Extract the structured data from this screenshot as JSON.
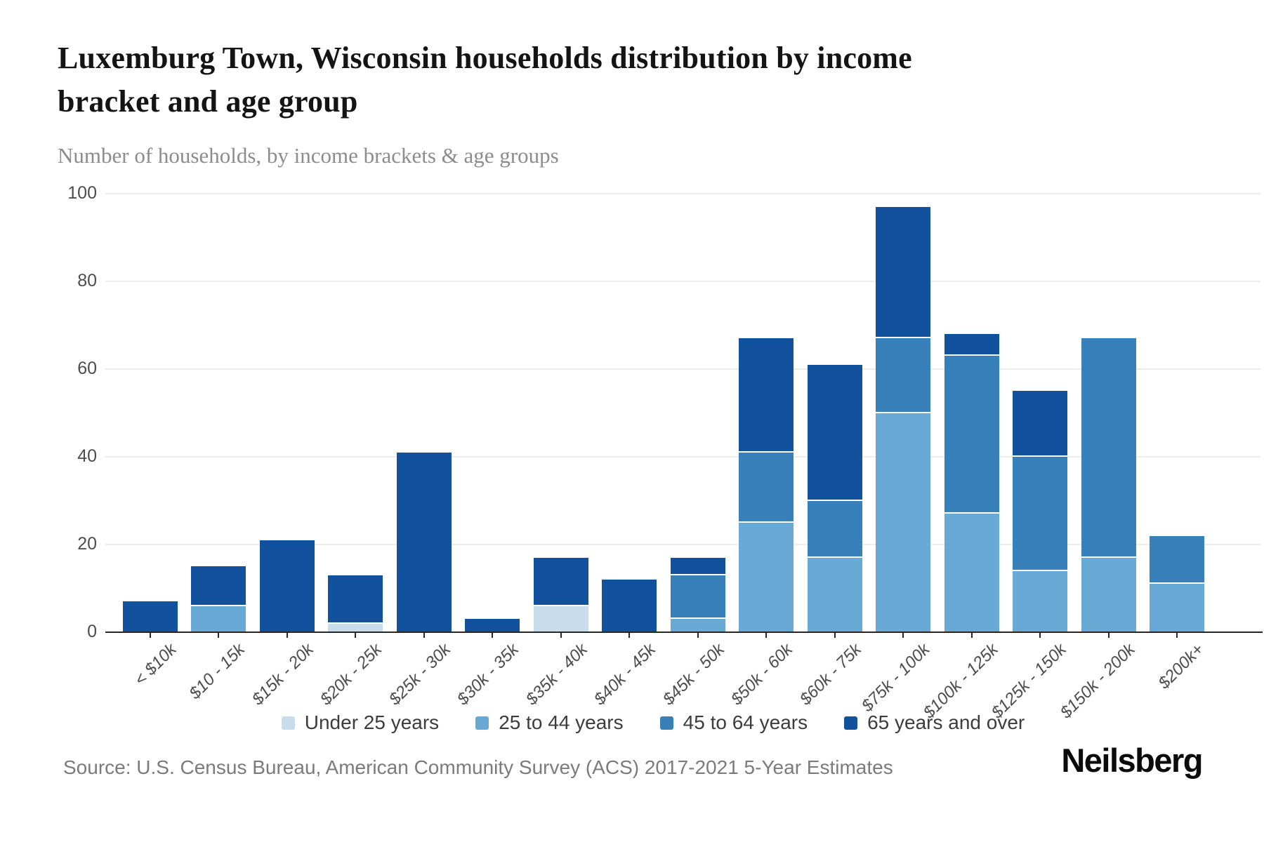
{
  "header": {
    "title": "Luxemburg Town, Wisconsin households distribution by income\nbracket and age group",
    "subtitle": "Number of households, by income brackets & age groups"
  },
  "chart_data": {
    "type": "bar",
    "stacked": true,
    "title": "Luxemburg Town, Wisconsin households distribution by income bracket and age group",
    "subtitle": "Number of households, by income brackets & age groups",
    "xlabel": "",
    "ylabel": "",
    "ylim": [
      0,
      100
    ],
    "yticks": [
      0,
      20,
      40,
      60,
      80,
      100
    ],
    "grid": true,
    "legend_position": "bottom",
    "categories": [
      "< $10k",
      "$10 - 15k",
      "$15k - 20k",
      "$20k - 25k",
      "$25k - 30k",
      "$30k - 35k",
      "$35k - 40k",
      "$40k - 45k",
      "$45k - 50k",
      "$50k - 60k",
      "$60k - 75k",
      "$75k - 100k",
      "$100k - 125k",
      "$125k - 150k",
      "$150k - 200k",
      "$200k+"
    ],
    "series": [
      {
        "name": "Under 25 years",
        "color": "#c8dcec",
        "values": [
          0,
          0,
          0,
          2,
          0,
          0,
          6,
          0,
          0,
          0,
          0,
          0,
          0,
          0,
          0,
          0
        ]
      },
      {
        "name": "25 to 44 years",
        "color": "#68aad5",
        "values": [
          0,
          6,
          0,
          0,
          0,
          0,
          0,
          0,
          3,
          25,
          17,
          50,
          27,
          14,
          17,
          11
        ]
      },
      {
        "name": "45 to 64 years",
        "color": "#3780b9",
        "values": [
          0,
          0,
          0,
          0,
          0,
          0,
          0,
          0,
          10,
          16,
          13,
          17,
          36,
          26,
          50,
          11
        ]
      },
      {
        "name": "65 years and over",
        "color": "#11519d",
        "values": [
          7,
          9,
          21,
          11,
          41,
          3,
          11,
          12,
          4,
          26,
          31,
          30,
          5,
          15,
          0,
          0
        ]
      }
    ],
    "totals": [
      7,
      15,
      21,
      13,
      41,
      3,
      17,
      12,
      17,
      67,
      61,
      97,
      68,
      55,
      67,
      22
    ]
  },
  "footer": {
    "source": "Source: U.S. Census Bureau, American Community Survey (ACS) 2017-2021 5-Year Estimates",
    "logo": "Neilsberg"
  }
}
